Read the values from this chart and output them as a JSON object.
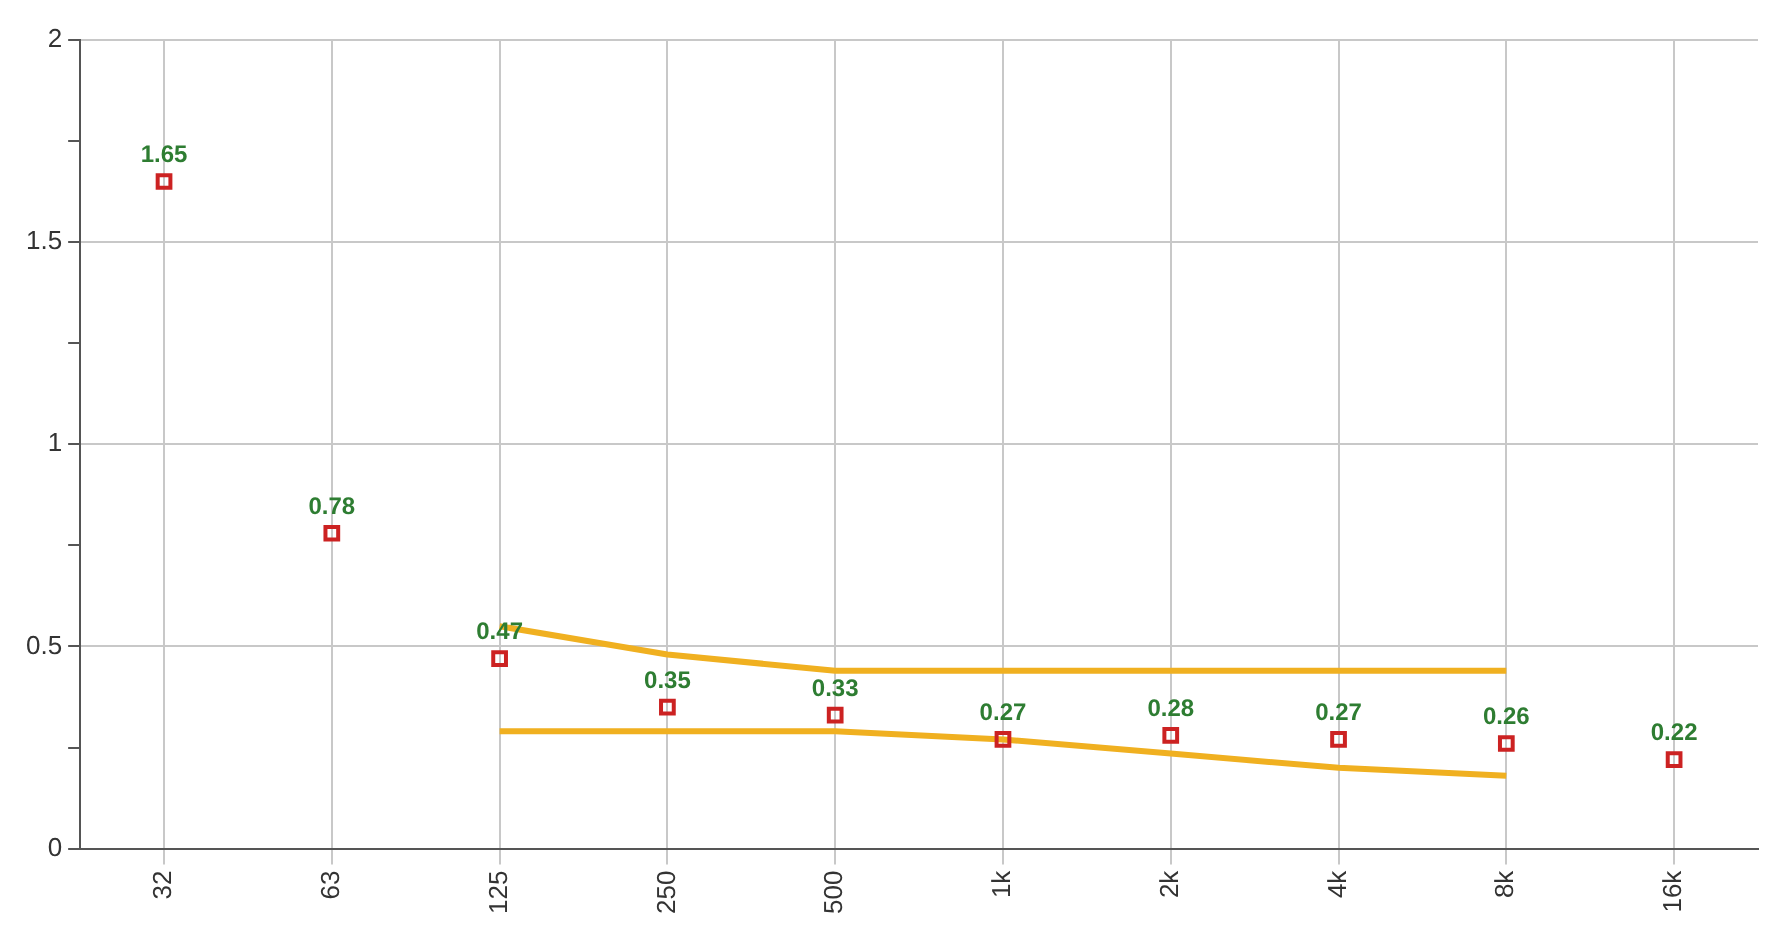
{
  "chart_data": {
    "type": "scatter",
    "categories": [
      "32",
      "63",
      "125",
      "250",
      "500",
      "1k",
      "2k",
      "4k",
      "8k",
      "16k"
    ],
    "series": [
      {
        "color": "#cc2222",
        "marker": "square",
        "data_labels": true,
        "values": [
          1.65,
          0.78,
          0.47,
          0.35,
          0.33,
          0.27,
          0.28,
          0.27,
          0.26,
          0.22
        ]
      },
      {
        "type": "line",
        "color": "#f0b020",
        "marker": "none",
        "values": [
          null,
          null,
          0.55,
          0.48,
          0.44,
          0.44,
          0.44,
          0.44,
          0.44,
          null
        ]
      },
      {
        "type": "line",
        "color": "#f0b020",
        "marker": "none",
        "values": [
          null,
          null,
          0.29,
          0.29,
          0.29,
          0.27,
          0.235,
          0.2,
          0.18,
          null
        ]
      }
    ],
    "ylim": [
      0,
      2
    ],
    "yticks": [
      0,
      {
        "value": 0.25,
        "label": null
      },
      0.5,
      {
        "value": 0.75,
        "label": null
      },
      1,
      {
        "value": 1.25,
        "label": null
      },
      1.5,
      {
        "value": 1.75,
        "label": null
      },
      2
    ],
    "grid": true,
    "legend": false
  }
}
